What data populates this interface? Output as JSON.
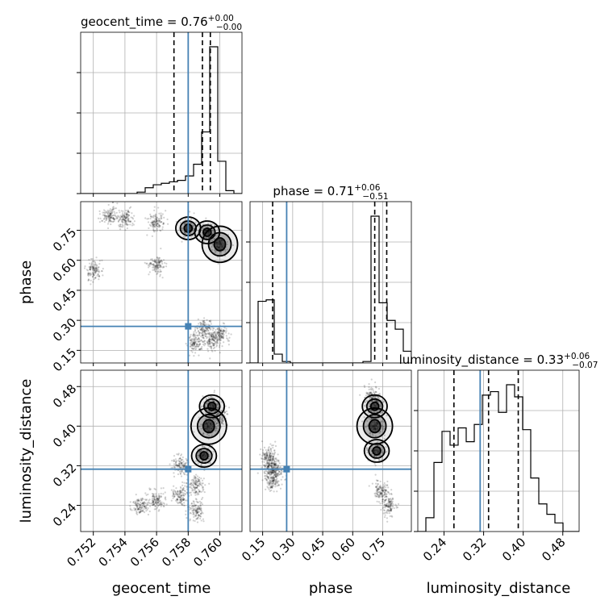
{
  "chart_data": {
    "type": "corner",
    "parameters": [
      "geocent_time",
      "phase",
      "luminosity_distance"
    ],
    "axis_labels": {
      "geocent_time": "geocent_time",
      "phase": "phase",
      "luminosity_distance": "luminosity_distance"
    },
    "ranges": {
      "geocent_time": [
        0.7512,
        0.7614
      ],
      "phase": [
        0.087,
        0.893
      ],
      "luminosity_distance": [
        0.187,
        0.513
      ]
    },
    "ticks": {
      "geocent_time": {
        "values": [
          0.752,
          0.754,
          0.756,
          0.758,
          0.76
        ],
        "labels": [
          "0.752",
          "0.754",
          "0.756",
          "0.758",
          "0.760"
        ]
      },
      "phase": {
        "values": [
          0.15,
          0.3,
          0.45,
          0.6,
          0.75
        ],
        "labels": [
          "0.15",
          "0.30",
          "0.45",
          "0.60",
          "0.75"
        ]
      },
      "luminosity_distance": {
        "values": [
          0.24,
          0.32,
          0.4,
          0.48
        ],
        "labels": [
          "0.24",
          "0.32",
          "0.40",
          "0.48"
        ]
      }
    },
    "truths": {
      "geocent_time": 0.758,
      "phase": 0.27,
      "luminosity_distance": 0.313
    },
    "marginals": {
      "geocent_time": {
        "title": {
          "name": "geocent_time",
          "median": "0.76",
          "plus": "+0.00",
          "minus": "−0.00"
        },
        "quantiles": [
          0.7571,
          0.7589,
          0.7594
        ],
        "bins": [
          0.7512,
          0.75171,
          0.75222,
          0.75273,
          0.75324,
          0.75375,
          0.75426,
          0.75477,
          0.75528,
          0.75579,
          0.7563,
          0.75681,
          0.75732,
          0.75783,
          0.75834,
          0.75885,
          0.75936,
          0.75987,
          0.76038,
          0.76089,
          0.7614
        ],
        "counts": [
          0,
          0,
          0,
          0,
          0,
          0,
          0,
          0.01,
          0.04,
          0.06,
          0.07,
          0.08,
          0.09,
          0.12,
          0.2,
          0.42,
          1.0,
          0.22,
          0.02,
          0
        ]
      },
      "phase": {
        "title": {
          "name": "phase",
          "median": "0.71",
          "plus": "+0.06",
          "minus": "−0.51"
        },
        "quantiles": [
          0.2,
          0.71,
          0.77
        ],
        "bins": [
          0.087,
          0.1273,
          0.1676,
          0.2079,
          0.2482,
          0.2885,
          0.3288,
          0.3691,
          0.4094,
          0.4497,
          0.49,
          0.5303,
          0.5706,
          0.6109,
          0.6512,
          0.6915,
          0.7318,
          0.7721,
          0.8124,
          0.8527,
          0.893
        ],
        "counts": [
          0.0,
          0.42,
          0.43,
          0.06,
          0.01,
          0.0,
          0.0,
          0.0,
          0.0,
          0.0,
          0.0,
          0.0,
          0.0,
          0.0,
          0.01,
          1.0,
          0.41,
          0.29,
          0.23,
          0.08
        ]
      },
      "luminosity_distance": {
        "title": {
          "name": "luminosity_distance",
          "median": "0.33",
          "plus": "+0.06",
          "minus": "−0.07"
        },
        "quantiles": [
          0.26,
          0.33,
          0.39
        ],
        "bins": [
          0.187,
          0.2033,
          0.2196,
          0.2359,
          0.2522,
          0.2685,
          0.2848,
          0.3011,
          0.3174,
          0.3337,
          0.35,
          0.3663,
          0.3826,
          0.3989,
          0.4152,
          0.4315,
          0.4478,
          0.4641,
          0.4804,
          0.4967,
          0.513
        ],
        "counts": [
          0.0,
          0.08,
          0.4,
          0.58,
          0.5,
          0.6,
          0.52,
          0.62,
          0.79,
          0.81,
          0.69,
          0.85,
          0.78,
          0.59,
          0.31,
          0.16,
          0.1,
          0.05,
          0.0,
          0.0
        ]
      }
    },
    "joint_regions": [
      {
        "x": "geocent_time",
        "y": "phase",
        "points": [
          [
            0.76,
            0.68
          ],
          [
            0.7592,
            0.74
          ],
          [
            0.758,
            0.76
          ],
          [
            0.756,
            0.79
          ],
          [
            0.754,
            0.81
          ],
          [
            0.753,
            0.82
          ],
          [
            0.756,
            0.58
          ],
          [
            0.759,
            0.26
          ],
          [
            0.7595,
            0.2
          ],
          [
            0.7585,
            0.19
          ],
          [
            0.76,
            0.23
          ],
          [
            0.752,
            0.55
          ]
        ]
      },
      {
        "x": "geocent_time",
        "y": "luminosity_distance",
        "points": [
          [
            0.7593,
            0.4
          ],
          [
            0.7595,
            0.44
          ],
          [
            0.759,
            0.34
          ],
          [
            0.7585,
            0.28
          ],
          [
            0.7575,
            0.26
          ],
          [
            0.756,
            0.25
          ],
          [
            0.755,
            0.24
          ],
          [
            0.7575,
            0.32
          ],
          [
            0.7585,
            0.23
          ],
          [
            0.76,
            0.42
          ]
        ]
      },
      {
        "x": "phase",
        "y": "luminosity_distance",
        "points": [
          [
            0.71,
            0.4
          ],
          [
            0.71,
            0.44
          ],
          [
            0.72,
            0.35
          ],
          [
            0.74,
            0.27
          ],
          [
            0.78,
            0.24
          ],
          [
            0.7,
            0.46
          ],
          [
            0.19,
            0.32
          ],
          [
            0.18,
            0.34
          ],
          [
            0.2,
            0.29
          ],
          [
            0.21,
            0.31
          ]
        ]
      }
    ]
  }
}
